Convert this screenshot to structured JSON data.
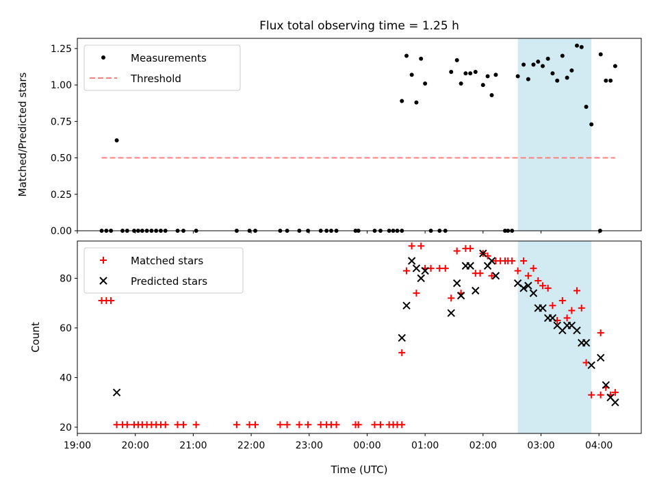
{
  "figure_title": "Flux total observing time = 1.25 h",
  "colors": {
    "measurement": "#000000",
    "threshold": "#ff7f7f",
    "matched": "#ff0000",
    "predicted": "#000000",
    "highlight": "#add8e6"
  },
  "chart_data": [
    {
      "type": "scatter",
      "title": "Flux total observing time = 1.25 h",
      "xlabel": "",
      "ylabel": "Matched/Predicted stars",
      "x_unit": "hours since 19:00 UTC",
      "xlim": [
        0,
        9.73
      ],
      "ylim": [
        0,
        1.32
      ],
      "yticks": [
        0.0,
        0.25,
        0.5,
        0.75,
        1.0,
        1.25
      ],
      "ytick_labels": [
        "0.00",
        "0.25",
        "0.50",
        "0.75",
        "1.00",
        "1.25"
      ],
      "highlight_span": [
        7.6,
        8.87
      ],
      "legend": {
        "position": "upper-left",
        "entries": [
          "Measurements",
          "Threshold"
        ]
      },
      "series": [
        {
          "name": "Measurements",
          "marker": "dot",
          "points": [
            [
              0.42,
              0
            ],
            [
              0.5,
              0
            ],
            [
              0.58,
              0
            ],
            [
              0.68,
              0.62
            ],
            [
              0.78,
              0
            ],
            [
              0.86,
              0
            ],
            [
              0.98,
              0
            ],
            [
              1.05,
              0
            ],
            [
              1.12,
              0
            ],
            [
              1.2,
              0
            ],
            [
              1.28,
              0
            ],
            [
              1.36,
              0
            ],
            [
              1.44,
              0
            ],
            [
              1.52,
              0
            ],
            [
              1.73,
              0
            ],
            [
              1.83,
              0
            ],
            [
              2.05,
              0
            ],
            [
              2.75,
              0
            ],
            [
              2.97,
              0
            ],
            [
              3.07,
              0
            ],
            [
              3.5,
              0
            ],
            [
              3.62,
              0
            ],
            [
              3.83,
              0
            ],
            [
              3.98,
              0
            ],
            [
              4.2,
              0
            ],
            [
              4.3,
              0
            ],
            [
              4.38,
              0
            ],
            [
              4.47,
              0
            ],
            [
              4.8,
              0
            ],
            [
              4.85,
              0
            ],
            [
              5.13,
              0
            ],
            [
              5.23,
              0
            ],
            [
              5.38,
              0
            ],
            [
              5.45,
              0
            ],
            [
              5.52,
              0
            ],
            [
              5.6,
              0
            ],
            [
              5.6,
              0.89
            ],
            [
              5.68,
              1.2
            ],
            [
              5.77,
              1.07
            ],
            [
              5.85,
              0.88
            ],
            [
              5.93,
              1.18
            ],
            [
              6.0,
              1.01
            ],
            [
              6.1,
              0
            ],
            [
              6.25,
              0
            ],
            [
              6.35,
              0
            ],
            [
              6.45,
              1.09
            ],
            [
              6.55,
              1.17
            ],
            [
              6.62,
              1.01
            ],
            [
              6.7,
              1.08
            ],
            [
              6.78,
              1.08
            ],
            [
              6.87,
              1.09
            ],
            [
              7.0,
              1.0
            ],
            [
              7.08,
              1.06
            ],
            [
              7.15,
              0.93
            ],
            [
              7.22,
              1.07
            ],
            [
              7.38,
              0
            ],
            [
              7.43,
              0
            ],
            [
              7.5,
              0
            ],
            [
              7.6,
              1.06
            ],
            [
              7.7,
              1.14
            ],
            [
              7.78,
              1.04
            ],
            [
              7.87,
              1.14
            ],
            [
              7.95,
              1.16
            ],
            [
              8.03,
              1.13
            ],
            [
              8.12,
              1.18
            ],
            [
              8.2,
              1.08
            ],
            [
              8.28,
              1.03
            ],
            [
              8.37,
              1.2
            ],
            [
              8.45,
              1.05
            ],
            [
              8.53,
              1.1
            ],
            [
              8.62,
              1.27
            ],
            [
              8.7,
              1.26
            ],
            [
              8.78,
              0.85
            ],
            [
              8.87,
              0.73
            ],
            [
              9.02,
              0
            ],
            [
              9.03,
              1.21
            ],
            [
              9.12,
              1.03
            ],
            [
              9.2,
              1.03
            ],
            [
              9.28,
              1.13
            ]
          ]
        },
        {
          "name": "Threshold",
          "style": "dashed",
          "points": [
            [
              0.42,
              0.5
            ],
            [
              9.28,
              0.5
            ]
          ]
        }
      ]
    },
    {
      "type": "scatter",
      "title": "",
      "xlabel": "Time (UTC)",
      "ylabel": "Count",
      "x_unit": "hours since 19:00 UTC",
      "xlim": [
        0,
        9.73
      ],
      "ylim": [
        17.5,
        95
      ],
      "yticks": [
        20,
        40,
        60,
        80
      ],
      "ytick_labels": [
        "20",
        "40",
        "60",
        "80"
      ],
      "xticks": [
        0,
        1,
        2,
        3,
        4,
        5,
        6,
        7,
        8,
        9
      ],
      "xtick_labels": [
        "19:00",
        "20:00",
        "21:00",
        "22:00",
        "23:00",
        "00:00",
        "01:00",
        "02:00",
        "03:00",
        "04:00"
      ],
      "highlight_span": [
        7.6,
        8.87
      ],
      "legend": {
        "position": "upper-left",
        "entries": [
          "Matched stars",
          "Predicted stars"
        ]
      },
      "series": [
        {
          "name": "Matched stars",
          "marker": "plus",
          "points": [
            [
              0.42,
              71
            ],
            [
              0.5,
              71
            ],
            [
              0.58,
              71
            ],
            [
              0.68,
              21
            ],
            [
              0.78,
              21
            ],
            [
              0.86,
              21
            ],
            [
              0.98,
              21
            ],
            [
              1.05,
              21
            ],
            [
              1.12,
              21
            ],
            [
              1.2,
              21
            ],
            [
              1.28,
              21
            ],
            [
              1.36,
              21
            ],
            [
              1.44,
              21
            ],
            [
              1.52,
              21
            ],
            [
              1.73,
              21
            ],
            [
              1.83,
              21
            ],
            [
              2.05,
              21
            ],
            [
              2.75,
              21
            ],
            [
              2.97,
              21
            ],
            [
              3.07,
              21
            ],
            [
              3.5,
              21
            ],
            [
              3.62,
              21
            ],
            [
              3.83,
              21
            ],
            [
              3.98,
              21
            ],
            [
              4.2,
              21
            ],
            [
              4.3,
              21
            ],
            [
              4.38,
              21
            ],
            [
              4.47,
              21
            ],
            [
              4.8,
              21
            ],
            [
              4.85,
              21
            ],
            [
              5.13,
              21
            ],
            [
              5.23,
              21
            ],
            [
              5.38,
              21
            ],
            [
              5.45,
              21
            ],
            [
              5.52,
              21
            ],
            [
              5.6,
              21
            ],
            [
              5.6,
              50
            ],
            [
              5.68,
              83
            ],
            [
              5.77,
              93
            ],
            [
              5.85,
              74
            ],
            [
              5.93,
              93
            ],
            [
              6.0,
              84
            ],
            [
              6.1,
              84
            ],
            [
              6.25,
              84
            ],
            [
              6.35,
              84
            ],
            [
              6.45,
              72
            ],
            [
              6.55,
              91
            ],
            [
              6.62,
              74
            ],
            [
              6.7,
              92
            ],
            [
              6.78,
              92
            ],
            [
              6.87,
              82
            ],
            [
              6.95,
              82
            ],
            [
              7.0,
              90
            ],
            [
              7.08,
              89
            ],
            [
              7.15,
              81
            ],
            [
              7.22,
              87
            ],
            [
              7.3,
              87
            ],
            [
              7.38,
              87
            ],
            [
              7.43,
              87
            ],
            [
              7.5,
              87
            ],
            [
              7.6,
              83
            ],
            [
              7.7,
              87
            ],
            [
              7.78,
              81
            ],
            [
              7.87,
              84
            ],
            [
              7.95,
              79
            ],
            [
              8.03,
              77
            ],
            [
              8.12,
              76
            ],
            [
              8.2,
              69
            ],
            [
              8.28,
              63
            ],
            [
              8.37,
              71
            ],
            [
              8.45,
              64
            ],
            [
              8.53,
              67
            ],
            [
              8.62,
              75
            ],
            [
              8.7,
              68
            ],
            [
              8.78,
              46
            ],
            [
              8.87,
              33
            ],
            [
              9.03,
              33
            ],
            [
              9.03,
              58
            ],
            [
              9.12,
              36
            ],
            [
              9.2,
              33
            ],
            [
              9.28,
              34
            ]
          ]
        },
        {
          "name": "Predicted stars",
          "marker": "x",
          "points": [
            [
              0.68,
              34
            ],
            [
              5.6,
              56
            ],
            [
              5.68,
              69
            ],
            [
              5.77,
              87
            ],
            [
              5.85,
              84
            ],
            [
              5.93,
              80
            ],
            [
              6.0,
              83
            ],
            [
              6.45,
              66
            ],
            [
              6.55,
              78
            ],
            [
              6.62,
              73
            ],
            [
              6.7,
              85
            ],
            [
              6.78,
              85
            ],
            [
              6.87,
              75
            ],
            [
              7.0,
              90
            ],
            [
              7.08,
              85
            ],
            [
              7.15,
              87
            ],
            [
              7.22,
              81
            ],
            [
              7.6,
              78
            ],
            [
              7.7,
              76
            ],
            [
              7.78,
              77
            ],
            [
              7.87,
              74
            ],
            [
              7.95,
              68
            ],
            [
              8.03,
              68
            ],
            [
              8.12,
              64
            ],
            [
              8.2,
              64
            ],
            [
              8.28,
              61
            ],
            [
              8.37,
              59
            ],
            [
              8.45,
              61
            ],
            [
              8.53,
              61
            ],
            [
              8.62,
              59
            ],
            [
              8.7,
              54
            ],
            [
              8.78,
              54
            ],
            [
              8.87,
              45
            ],
            [
              9.03,
              48
            ],
            [
              9.12,
              37
            ],
            [
              9.2,
              32
            ],
            [
              9.28,
              30
            ]
          ]
        }
      ]
    }
  ]
}
